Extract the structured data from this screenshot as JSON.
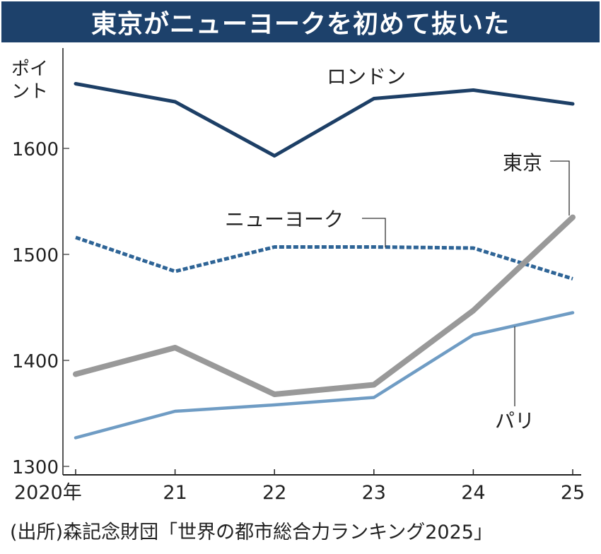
{
  "title": "東京がニューヨークを初めて抜いた",
  "source": "(出所)森記念財団「世界の都市総合力ランキング2025」",
  "chart_data": {
    "type": "line",
    "title": "東京がニューヨークを初めて抜いた",
    "ylabel": "ポイント",
    "ylabel_lines": [
      "ポイ",
      "ント"
    ],
    "xlabel": "",
    "x": [
      2020,
      2021,
      2022,
      2023,
      2024,
      2025
    ],
    "x_tick_labels": [
      "2020年",
      "21",
      "22",
      "23",
      "24",
      "25"
    ],
    "y_ticks": [
      1300,
      1400,
      1500,
      1600
    ],
    "ylim": [
      1300,
      1700
    ],
    "grid": false,
    "series": [
      {
        "name": "ロンドン",
        "color": "#1d3f66",
        "style": "solid",
        "values": [
          1661,
          1644,
          1593,
          1647,
          1655,
          1642
        ]
      },
      {
        "name": "ニューヨーク",
        "color": "#2e6496",
        "style": "dashed",
        "values": [
          1516,
          1484,
          1507,
          1507,
          1506,
          1477
        ]
      },
      {
        "name": "東京",
        "color": "#999999",
        "style": "solid-thick",
        "values": [
          1387,
          1412,
          1368,
          1377,
          1447,
          1535
        ]
      },
      {
        "name": "パリ",
        "color": "#6f9cc4",
        "style": "solid",
        "values": [
          1327,
          1352,
          1358,
          1365,
          1424,
          1445
        ]
      }
    ]
  }
}
